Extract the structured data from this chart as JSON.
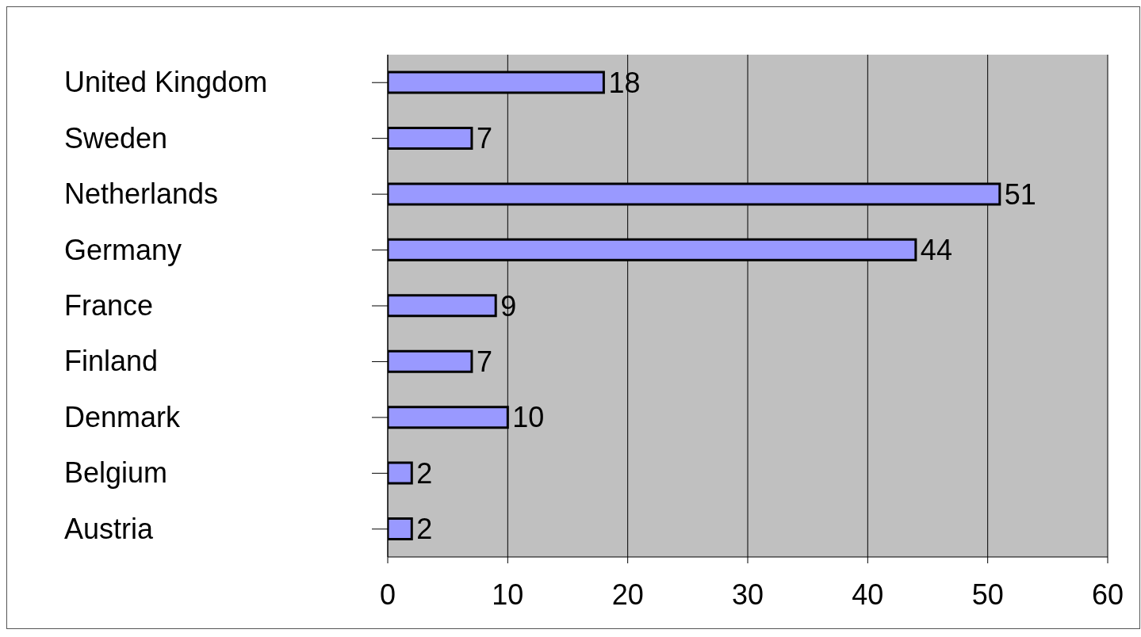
{
  "chart_data": {
    "type": "bar",
    "orientation": "horizontal",
    "categories": [
      "United Kingdom",
      "Sweden",
      "Netherlands",
      "Germany",
      "France",
      "Finland",
      "Denmark",
      "Belgium",
      "Austria"
    ],
    "values": [
      18,
      7,
      51,
      44,
      9,
      7,
      10,
      2,
      2
    ],
    "color": "#9999ff",
    "xlim": [
      0,
      60
    ],
    "xticks": [
      0,
      10,
      20,
      30,
      40,
      50,
      60
    ],
    "grid": "x",
    "data_labels": true,
    "legend": false
  }
}
